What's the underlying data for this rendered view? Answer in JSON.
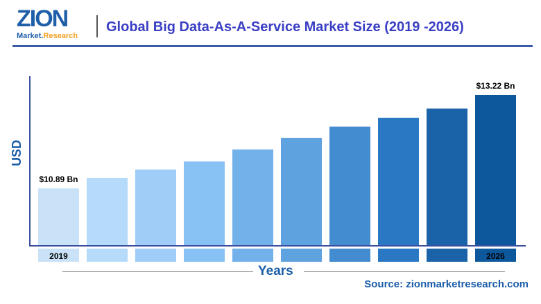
{
  "header": {
    "logo_text": "ZION",
    "logo_sub": "Market.Research",
    "title": "Global Big Data-As-A-Service Market Size (2019 -2026)"
  },
  "chart_data": {
    "type": "bar",
    "title": "Global Big Data-As-A-Service Market Size (2019 -2026)",
    "xlabel": "Years",
    "ylabel": "USD",
    "categories": [
      "2019",
      "",
      "",
      "",
      "",
      "",
      "",
      "",
      "",
      "2026"
    ],
    "values": [
      10.89,
      11.15,
      11.36,
      11.56,
      11.86,
      12.15,
      12.43,
      12.65,
      12.88,
      13.22
    ],
    "data_labels": [
      "$10.89 Bn",
      "",
      "",
      "",
      "",
      "",
      "",
      "",
      "",
      "$13.22 Bn"
    ],
    "unit": "USD Bn",
    "colors": [
      "#c9e2f7",
      "#b6dafa",
      "#9fcdf7",
      "#88c1f3",
      "#73b1eb",
      "#5fa2e0",
      "#438ccf",
      "#2a78c3",
      "#1a63a9",
      "#0d579c"
    ],
    "grid": false
  },
  "source": "Source: zionmarketresearch.com"
}
